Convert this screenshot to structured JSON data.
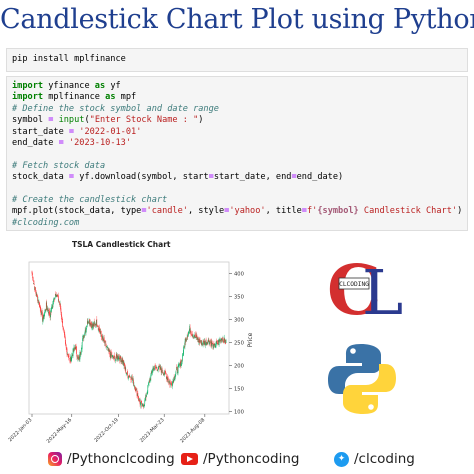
{
  "header": {
    "title": "Candlestick Chart Plot using Python"
  },
  "install_cell": {
    "command": "pip install mplfinance"
  },
  "code_cell": {
    "import1_kw": "import",
    "import1_mod": " yfinance ",
    "import1_as": "as",
    "import1_alias": " yf",
    "import2_kw": "import",
    "import2_mod": " mplfinance ",
    "import2_as": "as",
    "import2_alias": " mpf",
    "comment1": "# Define the stock symbol and date range",
    "symbol_line_a": "symbol ",
    "symbol_eq": "=",
    "symbol_fn": " input",
    "symbol_paren_open": "(",
    "symbol_str": "\"Enter Stock Name : \"",
    "symbol_paren_close": ")",
    "start_a": "start_date ",
    "start_eq": "=",
    "start_str": " '2022-01-01'",
    "end_a": "end_date ",
    "end_eq": "=",
    "end_str": " '2023-10-13'",
    "comment2": "# Fetch stock data",
    "fetch_a": "stock_data ",
    "fetch_eq": "=",
    "fetch_b": " yf.download(symbol, start",
    "fetch_eq2": "=",
    "fetch_c": "start_date, end",
    "fetch_eq3": "=",
    "fetch_d": "end_date)",
    "comment3": "# Create the candlestick chart",
    "plot_a": "mpf.plot(stock_data, type",
    "plot_eq1": "=",
    "plot_s1": "'candle'",
    "plot_b": ", style",
    "plot_eq2": "=",
    "plot_s2": "'yahoo'",
    "plot_c": ", title",
    "plot_eq3": "=",
    "plot_s3": "f'",
    "plot_d": "{symbol}",
    "plot_s4": " Candlestick Chart'",
    "plot_e": ")",
    "comment4": "#clcoding.com"
  },
  "chart": {
    "title": "TSLA Candlestick Chart",
    "ylabel": "Price"
  },
  "chart_data": {
    "type": "candlestick",
    "title": "TSLA Candlestick Chart",
    "ylabel": "Price",
    "ylim": [
      95,
      425
    ],
    "yticks": [
      100,
      150,
      200,
      250,
      300,
      350,
      400
    ],
    "xticks": [
      "2022-Jan-03",
      "2022-May-16",
      "2022-Oct-19",
      "2023-Mar-23",
      "2023-Aug-08"
    ],
    "xtick_index": [
      0,
      92,
      200,
      306,
      400
    ],
    "n_candles": 450,
    "close_anchors": [
      [
        0,
        400
      ],
      [
        8,
        360
      ],
      [
        15,
        340
      ],
      [
        25,
        300
      ],
      [
        33,
        330
      ],
      [
        42,
        310
      ],
      [
        55,
        360
      ],
      [
        65,
        330
      ],
      [
        78,
        240
      ],
      [
        88,
        210
      ],
      [
        95,
        230
      ],
      [
        100,
        240
      ],
      [
        108,
        210
      ],
      [
        118,
        260
      ],
      [
        130,
        300
      ],
      [
        140,
        285
      ],
      [
        150,
        295
      ],
      [
        160,
        265
      ],
      [
        170,
        245
      ],
      [
        180,
        225
      ],
      [
        190,
        215
      ],
      [
        200,
        220
      ],
      [
        210,
        210
      ],
      [
        220,
        180
      ],
      [
        230,
        175
      ],
      [
        240,
        150
      ],
      [
        250,
        120
      ],
      [
        255,
        110
      ],
      [
        262,
        125
      ],
      [
        270,
        160
      ],
      [
        280,
        195
      ],
      [
        290,
        195
      ],
      [
        300,
        190
      ],
      [
        310,
        180
      ],
      [
        320,
        160
      ],
      [
        325,
        165
      ],
      [
        335,
        190
      ],
      [
        345,
        205
      ],
      [
        355,
        255
      ],
      [
        365,
        280
      ],
      [
        370,
        270
      ],
      [
        380,
        260
      ],
      [
        390,
        250
      ],
      [
        400,
        250
      ],
      [
        410,
        255
      ],
      [
        420,
        240
      ],
      [
        430,
        250
      ],
      [
        440,
        260
      ],
      [
        449,
        250
      ]
    ],
    "up_color": "#00b060",
    "down_color": "#fe3032"
  },
  "logos": {
    "cl_label": "CLCODING",
    "cl_letters": "CL"
  },
  "footer": {
    "instagram": "/Pythonclcoding",
    "youtube": "/Pythoncoding",
    "twitter": "/clcoding"
  }
}
